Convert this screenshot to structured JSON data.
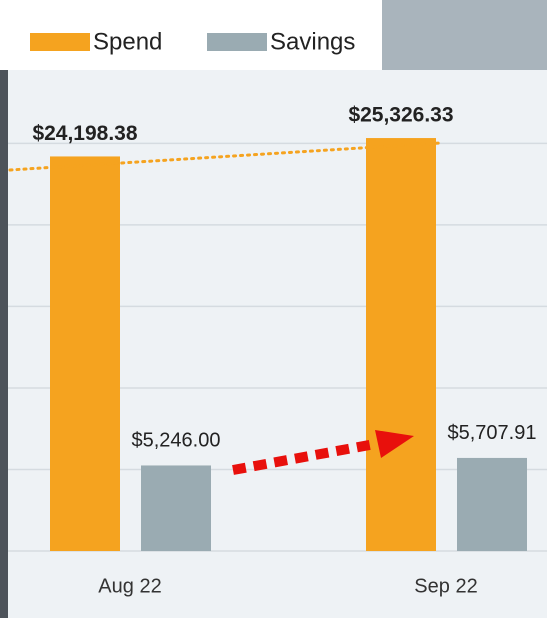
{
  "chart_data": {
    "type": "bar",
    "categories": [
      "Aug 22",
      "Sep 22"
    ],
    "series": [
      {
        "name": "Spend",
        "color": "#f5a31f",
        "values": [
          24198.38,
          25326.33
        ],
        "value_labels": [
          "$24,198.38",
          "$25,326.33"
        ]
      },
      {
        "name": "Savings",
        "color": "#9aabb2",
        "values": [
          5246.0,
          5707.91
        ],
        "value_labels": [
          "$5,246.00",
          "$5,707.91"
        ]
      }
    ],
    "ylim": [
      0,
      29500
    ],
    "yticks": [
      0,
      5000,
      10000,
      15000,
      20000,
      25000
    ],
    "grid": true
  }
}
